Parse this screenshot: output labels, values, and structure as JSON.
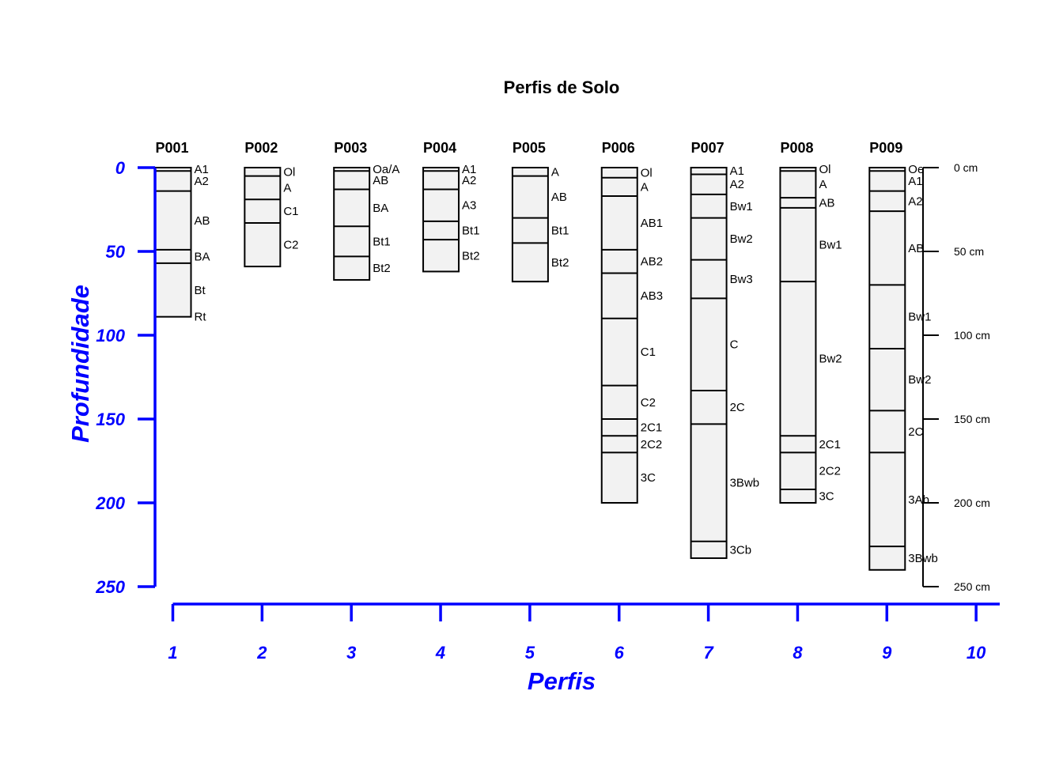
{
  "chart_data": {
    "type": "soil-profile",
    "title": "Perfis de Solo",
    "xlabel": "Perfis",
    "ylabel": "Profundidade",
    "xlim": [
      1,
      10
    ],
    "ylim": [
      0,
      250
    ],
    "x_ticks": [
      "1",
      "2",
      "3",
      "4",
      "5",
      "6",
      "7",
      "8",
      "9",
      "10"
    ],
    "y_ticks": [
      "0",
      "50",
      "100",
      "150",
      "200",
      "250"
    ],
    "depth_scale": {
      "ticks": [
        0,
        50,
        100,
        150,
        200,
        250
      ],
      "labels": [
        "0 cm",
        "50 cm",
        "100 cm",
        "150 cm",
        "200 cm",
        "250 cm"
      ]
    },
    "colors": {
      "axis": "#0000ff",
      "fill": "#f2f2f2",
      "line": "#000000"
    },
    "profiles": [
      {
        "id": "P001",
        "horizons": [
          {
            "name": "A1",
            "top": 0,
            "bottom": 2
          },
          {
            "name": "A2",
            "top": 2,
            "bottom": 14
          },
          {
            "name": "AB",
            "top": 14,
            "bottom": 49
          },
          {
            "name": "BA",
            "top": 49,
            "bottom": 57
          },
          {
            "name": "Bt",
            "top": 57,
            "bottom": 89
          },
          {
            "name": "Rt",
            "top": 89,
            "bottom": 89
          }
        ]
      },
      {
        "id": "P002",
        "horizons": [
          {
            "name": "Ol",
            "top": 0,
            "bottom": 5
          },
          {
            "name": "A",
            "top": 5,
            "bottom": 19
          },
          {
            "name": "C1",
            "top": 19,
            "bottom": 33
          },
          {
            "name": "C2",
            "top": 33,
            "bottom": 59
          }
        ]
      },
      {
        "id": "P003",
        "horizons": [
          {
            "name": "Oa/A",
            "top": 0,
            "bottom": 2
          },
          {
            "name": "AB",
            "top": 2,
            "bottom": 13
          },
          {
            "name": "BA",
            "top": 13,
            "bottom": 35
          },
          {
            "name": "Bt1",
            "top": 35,
            "bottom": 53
          },
          {
            "name": "Bt2",
            "top": 53,
            "bottom": 67
          }
        ]
      },
      {
        "id": "P004",
        "horizons": [
          {
            "name": "A1",
            "top": 0,
            "bottom": 2
          },
          {
            "name": "A2",
            "top": 2,
            "bottom": 13
          },
          {
            "name": "A3",
            "top": 13,
            "bottom": 32
          },
          {
            "name": "Bt1",
            "top": 32,
            "bottom": 43
          },
          {
            "name": "Bt2",
            "top": 43,
            "bottom": 62
          }
        ]
      },
      {
        "id": "P005",
        "horizons": [
          {
            "name": "A",
            "top": 0,
            "bottom": 5
          },
          {
            "name": "AB",
            "top": 5,
            "bottom": 30
          },
          {
            "name": "Bt1",
            "top": 30,
            "bottom": 45
          },
          {
            "name": "Bt2",
            "top": 45,
            "bottom": 68
          }
        ]
      },
      {
        "id": "P006",
        "horizons": [
          {
            "name": "Ol",
            "top": 0,
            "bottom": 6
          },
          {
            "name": "A",
            "top": 6,
            "bottom": 17
          },
          {
            "name": "AB1",
            "top": 17,
            "bottom": 49
          },
          {
            "name": "AB2",
            "top": 49,
            "bottom": 63
          },
          {
            "name": "AB3",
            "top": 63,
            "bottom": 90
          },
          {
            "name": "C1",
            "top": 90,
            "bottom": 130
          },
          {
            "name": "C2",
            "top": 130,
            "bottom": 150
          },
          {
            "name": "2C1",
            "top": 150,
            "bottom": 160
          },
          {
            "name": "2C2",
            "top": 160,
            "bottom": 170
          },
          {
            "name": "3C",
            "top": 170,
            "bottom": 200
          }
        ]
      },
      {
        "id": "P007",
        "horizons": [
          {
            "name": "A1",
            "top": 0,
            "bottom": 4
          },
          {
            "name": "A2",
            "top": 4,
            "bottom": 16
          },
          {
            "name": "Bw1",
            "top": 16,
            "bottom": 30
          },
          {
            "name": "Bw2",
            "top": 30,
            "bottom": 55
          },
          {
            "name": "Bw3",
            "top": 55,
            "bottom": 78
          },
          {
            "name": "C",
            "top": 78,
            "bottom": 133
          },
          {
            "name": "2C",
            "top": 133,
            "bottom": 153
          },
          {
            "name": "3Bwb",
            "top": 153,
            "bottom": 223
          },
          {
            "name": "3Cb",
            "top": 223,
            "bottom": 233
          }
        ]
      },
      {
        "id": "P008",
        "horizons": [
          {
            "name": "Ol",
            "top": 0,
            "bottom": 2
          },
          {
            "name": "A",
            "top": 2,
            "bottom": 18
          },
          {
            "name": "AB",
            "top": 18,
            "bottom": 24
          },
          {
            "name": "Bw1",
            "top": 24,
            "bottom": 68
          },
          {
            "name": "Bw2",
            "top": 68,
            "bottom": 160
          },
          {
            "name": "2C1",
            "top": 160,
            "bottom": 170
          },
          {
            "name": "2C2",
            "top": 170,
            "bottom": 192
          },
          {
            "name": "3C",
            "top": 192,
            "bottom": 200
          }
        ]
      },
      {
        "id": "P009",
        "horizons": [
          {
            "name": "Oe",
            "top": 0,
            "bottom": 2
          },
          {
            "name": "A1",
            "top": 2,
            "bottom": 14
          },
          {
            "name": "A2",
            "top": 14,
            "bottom": 26
          },
          {
            "name": "AB",
            "top": 26,
            "bottom": 70
          },
          {
            "name": "Bw1",
            "top": 70,
            "bottom": 108
          },
          {
            "name": "Bw2",
            "top": 108,
            "bottom": 145
          },
          {
            "name": "2C",
            "top": 145,
            "bottom": 170
          },
          {
            "name": "3Ab",
            "top": 170,
            "bottom": 226
          },
          {
            "name": "3Bwb",
            "top": 226,
            "bottom": 240
          }
        ]
      }
    ]
  }
}
